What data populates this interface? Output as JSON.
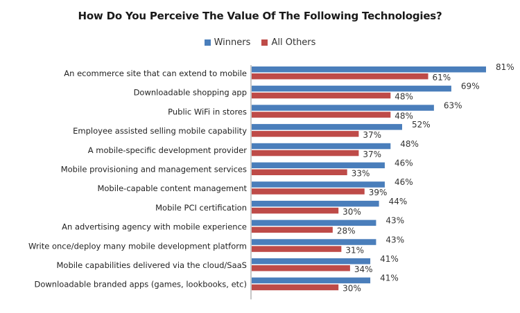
{
  "chart_data": {
    "type": "bar",
    "orientation": "horizontal",
    "title": "How Do You Perceive The Value Of The Following Technologies?",
    "xlabel": "",
    "ylabel": "",
    "xlim": [
      0,
      100
    ],
    "grid": false,
    "legend_position": "top-center",
    "value_format": "percent",
    "categories": [
      "An ecommerce site that can extend to mobile",
      "Downloadable shopping app",
      "Public WiFi in stores",
      "Employee assisted selling mobile capability",
      "A mobile-specific development provider",
      "Mobile provisioning and management services",
      "Mobile-capable content management",
      "Mobile PCI certification",
      "An advertising agency with mobile experience",
      "Write once/deploy many mobile development platform",
      "Mobile capabilities delivered via the cloud/SaaS",
      "Downloadable branded apps (games, lookbooks, etc)"
    ],
    "series": [
      {
        "name": "Winners",
        "color": "#4a7ebb",
        "values": [
          81,
          69,
          63,
          52,
          48,
          46,
          46,
          44,
          43,
          43,
          41,
          41
        ]
      },
      {
        "name": "All Others",
        "color": "#be4b48",
        "values": [
          61,
          48,
          48,
          37,
          37,
          33,
          39,
          30,
          28,
          31,
          34,
          30
        ]
      }
    ]
  }
}
